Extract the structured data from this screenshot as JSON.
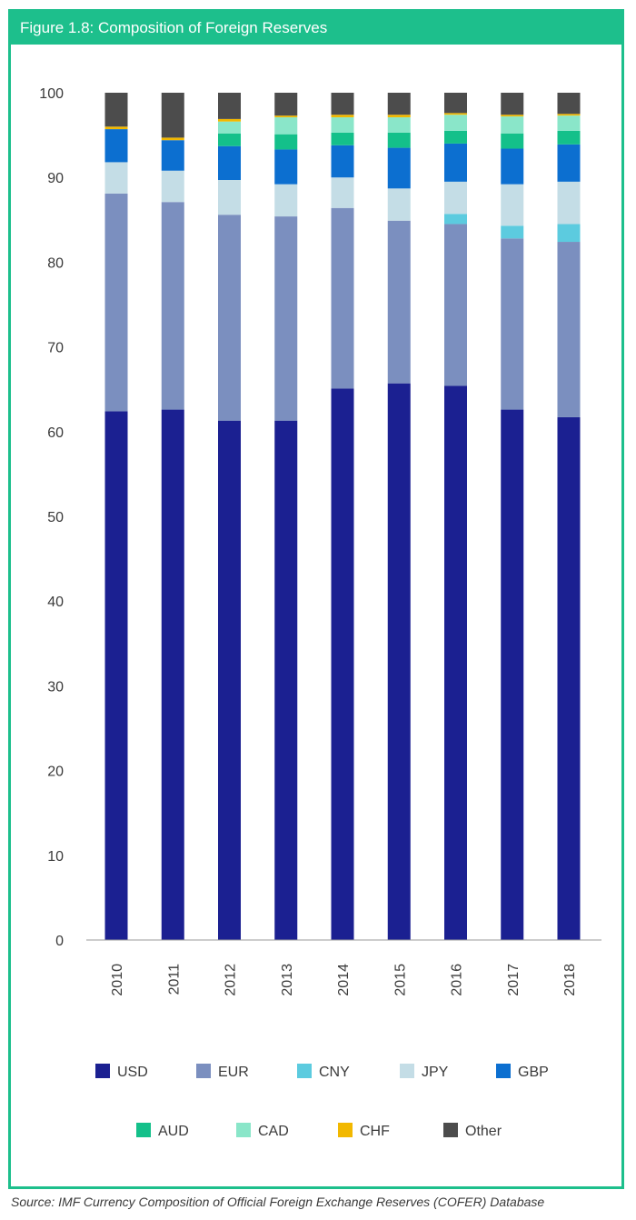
{
  "figure_title": "Figure 1.8: Composition of Foreign Reserves",
  "source": "Source: IMF Currency Composition of Official Foreign Exchange Reserves (COFER) Database",
  "chart_data": {
    "type": "bar",
    "stacked": true,
    "title": "",
    "xlabel": "",
    "ylabel": "",
    "ylim": [
      0,
      100
    ],
    "yticks": [
      0,
      10,
      20,
      30,
      40,
      50,
      60,
      70,
      80,
      90,
      100
    ],
    "grid": false,
    "legend_position": "bottom",
    "categories": [
      "2010",
      "2011",
      "2012",
      "2013",
      "2014",
      "2015",
      "2016",
      "2017",
      "2018"
    ],
    "series": [
      {
        "name": "USD",
        "color": "#1b2091",
        "values": [
          62.4,
          62.6,
          61.3,
          61.3,
          65.1,
          65.7,
          65.4,
          62.6,
          61.7
        ]
      },
      {
        "name": "EUR",
        "color": "#7b8fbf",
        "values": [
          25.7,
          24.5,
          24.3,
          24.1,
          21.3,
          19.2,
          19.1,
          20.2,
          20.7
        ]
      },
      {
        "name": "CNY",
        "color": "#5ccbdf",
        "values": [
          0,
          0,
          0,
          0,
          0,
          0,
          1.2,
          1.5,
          2.1
        ]
      },
      {
        "name": "JPY",
        "color": "#c4dde6",
        "values": [
          3.7,
          3.7,
          4.1,
          3.8,
          3.6,
          3.8,
          3.8,
          4.9,
          5.0
        ]
      },
      {
        "name": "GBP",
        "color": "#0c6fd0",
        "values": [
          3.9,
          3.6,
          4.0,
          4.1,
          3.8,
          4.8,
          4.5,
          4.2,
          4.4
        ]
      },
      {
        "name": "AUD",
        "color": "#14c08a",
        "values": [
          0,
          0,
          1.5,
          1.8,
          1.5,
          1.8,
          1.5,
          1.8,
          1.6
        ]
      },
      {
        "name": "CAD",
        "color": "#8ae6c9",
        "values": [
          0,
          0,
          1.4,
          2.0,
          1.8,
          1.8,
          1.9,
          2.0,
          1.8
        ]
      },
      {
        "name": "CHF",
        "color": "#f2b800",
        "values": [
          0.3,
          0.3,
          0.3,
          0.2,
          0.3,
          0.3,
          0.2,
          0.2,
          0.2
        ]
      },
      {
        "name": "Other",
        "color": "#4c4c4c",
        "values": [
          4.0,
          5.3,
          3.1,
          2.7,
          2.6,
          2.6,
          2.4,
          2.6,
          2.5
        ]
      }
    ]
  }
}
